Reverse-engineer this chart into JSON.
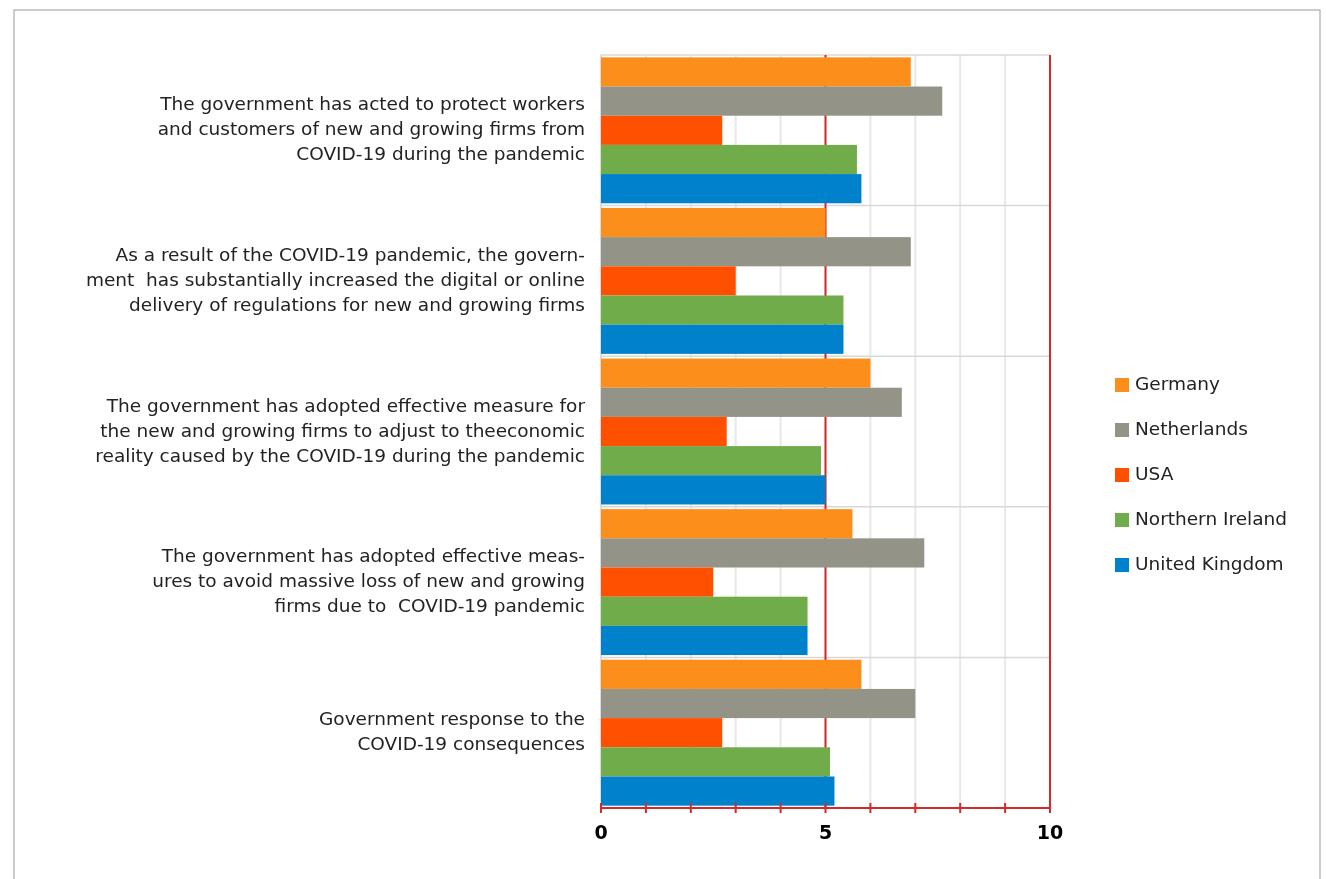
{
  "chart_data": {
    "type": "bar",
    "orientation": "horizontal",
    "categories": [
      "The government has acted to protect workers\nand customers of new and growing firms from\nCOVID-19 during the pandemic",
      "As a result of the COVID-19 pandemic, the govern-\nment  has substantially increased the digital or online\ndelivery of regulations for new and growing firms",
      "The government has adopted effective measure for\nthe new and growing firms to adjust to theeconomic\nreality caused by the COVID-19 during the pandemic",
      "The government has adopted effective meas-\nures to avoid massive loss of new and growing\nfirms due to  COVID-19 pandemic",
      "Government response to the\nCOVID-19 consequences"
    ],
    "series": [
      {
        "name": "Germany",
        "color": "#fc8f1b",
        "values": [
          6.9,
          5.0,
          6.0,
          5.6,
          5.8
        ]
      },
      {
        "name": "Netherlands",
        "color": "#949388",
        "values": [
          7.6,
          6.9,
          6.7,
          7.2,
          7.0
        ]
      },
      {
        "name": "USA",
        "color": "#ff5000",
        "values": [
          2.7,
          3.0,
          2.8,
          2.5,
          2.7
        ]
      },
      {
        "name": "Northern Ireland",
        "color": "#71ac4a",
        "values": [
          5.7,
          5.4,
          4.9,
          4.6,
          5.1
        ]
      },
      {
        "name": "United Kingdom",
        "color": "#0081cc",
        "values": [
          5.8,
          5.4,
          5.0,
          4.6,
          5.2
        ]
      }
    ],
    "xlim": [
      0,
      10
    ],
    "xticks": [
      0,
      {
        "value": 1,
        "label": null
      },
      {
        "value": 2,
        "label": null
      },
      {
        "value": 3,
        "label": null
      },
      {
        "value": 4,
        "label": null
      },
      5,
      {
        "value": 6,
        "label": null
      },
      {
        "value": 7,
        "label": null
      },
      {
        "value": 8,
        "label": null
      },
      {
        "value": 9,
        "label": null
      },
      10
    ],
    "ref_lines": [
      {
        "axis": "x",
        "value": 5,
        "color": "#d42a2a"
      },
      {
        "axis": "x",
        "value": 10,
        "color": "#d42a2a"
      }
    ],
    "grid": true,
    "legend": "right"
  }
}
